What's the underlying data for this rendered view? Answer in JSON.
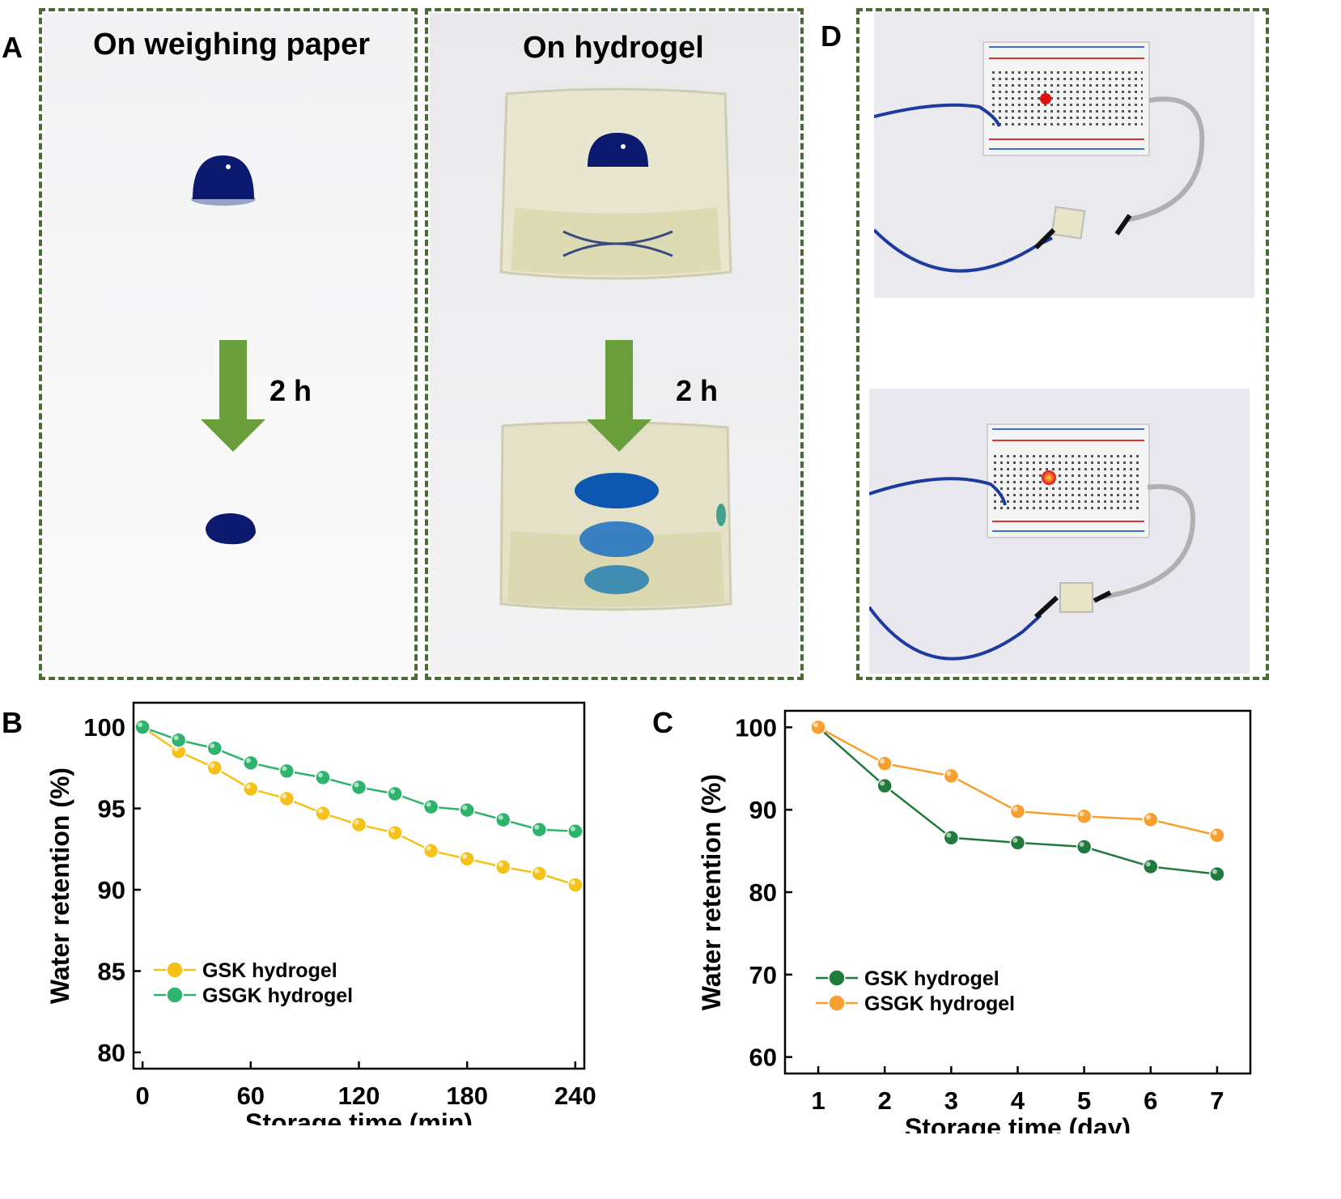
{
  "panels": {
    "a_letter": "A",
    "b_letter": "B",
    "c_letter": "C",
    "d_letter": "D"
  },
  "panel_a": {
    "left_title": "On weighing paper",
    "right_title": "On hydrogel",
    "left_time": "2 h",
    "right_time": "2 h",
    "arrow_color": "#6a9e3a",
    "dye_color": "#0b1a6e"
  },
  "panel_d": {
    "led_color": "#e01010",
    "wire_color": "#1d3a9e"
  },
  "chart_data": [
    {
      "id": "B",
      "type": "line",
      "xlabel": "Storage time (min)",
      "ylabel": "Water retention (%)",
      "xlim": [
        -5,
        245
      ],
      "ylim": [
        79,
        101.5
      ],
      "xticks": [
        0,
        60,
        120,
        180,
        240
      ],
      "yticks": [
        80,
        85,
        90,
        95,
        100
      ],
      "legend_position": "lower-left",
      "series": [
        {
          "name": "GSK hydrogel",
          "color": "#f5c21a",
          "x": [
            0,
            20,
            40,
            60,
            80,
            100,
            120,
            140,
            160,
            180,
            200,
            220,
            240
          ],
          "values": [
            100,
            98.5,
            97.5,
            96.2,
            95.6,
            94.7,
            94.0,
            93.5,
            92.4,
            91.9,
            91.4,
            91.0,
            90.3
          ]
        },
        {
          "name": "GSGK hydrogel",
          "color": "#2db36b",
          "x": [
            0,
            20,
            40,
            60,
            80,
            100,
            120,
            140,
            160,
            180,
            200,
            220,
            240
          ],
          "values": [
            100,
            99.2,
            98.7,
            97.8,
            97.3,
            96.9,
            96.3,
            95.9,
            95.1,
            94.9,
            94.3,
            93.7,
            93.6
          ]
        }
      ]
    },
    {
      "id": "C",
      "type": "line",
      "xlabel": "Storage time (day)",
      "ylabel": "Water retention (%)",
      "xlim": [
        0.5,
        7.5
      ],
      "ylim": [
        58,
        102
      ],
      "xticks": [
        1,
        2,
        3,
        4,
        5,
        6,
        7
      ],
      "yticks": [
        60,
        70,
        80,
        90,
        100
      ],
      "legend_position": "lower-left",
      "series": [
        {
          "name": "GSK hydrogel",
          "color": "#1f7a3c",
          "x": [
            1,
            2,
            3,
            4,
            5,
            6,
            7
          ],
          "values": [
            100,
            92.9,
            86.6,
            86.0,
            85.5,
            83.1,
            82.2
          ]
        },
        {
          "name": "GSGK hydrogel",
          "color": "#f7a030",
          "x": [
            1,
            2,
            3,
            4,
            5,
            6,
            7
          ],
          "values": [
            100,
            95.6,
            94.1,
            89.8,
            89.2,
            88.8,
            86.9
          ]
        }
      ]
    }
  ]
}
